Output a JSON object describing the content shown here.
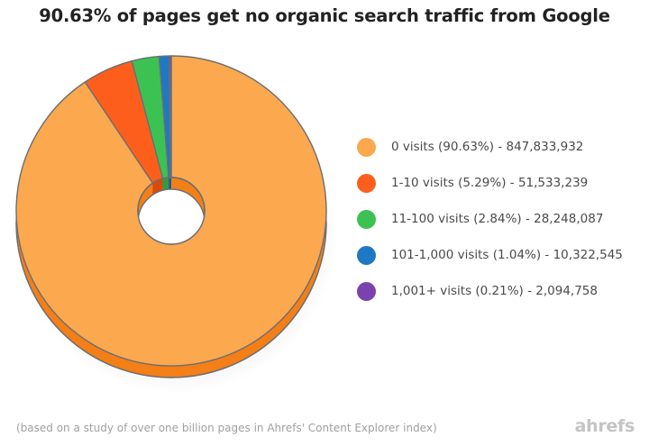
{
  "title": "90.63% of pages get no organic search traffic from Google",
  "footnote": "(based on a study of over one billion pages in Ahrefs' Content Explorer index)",
  "brand": "ahrefs",
  "chart_data": {
    "type": "pie",
    "variant": "donut-3d",
    "title": "90.63% of pages get no organic search traffic from Google",
    "legend_position": "right",
    "categories": [
      "0 visits",
      "1-10 visits",
      "11-100 visits",
      "101-1,000 visits",
      "1,001+ visits"
    ],
    "percentages": [
      90.63,
      5.29,
      2.84,
      1.04,
      0.21
    ],
    "values": [
      847833932,
      51533239,
      28248087,
      10322545,
      2094758
    ],
    "colors": [
      "#FBA84F",
      "#FD5E1C",
      "#3CC253",
      "#1F78C3",
      "#7B42AF"
    ],
    "side_colors": [
      "#F37F16",
      "#DA4A0C",
      "#2E9D42",
      "#17619D",
      "#5F2F8A"
    ],
    "legend": [
      "0 visits (90.63%) - 847,833,932",
      "1-10 visits (5.29%) - 51,533,239",
      "11-100 visits (2.84%) - 28,248,087",
      "101-1,000 visits (1.04%) - 10,322,545",
      "1,001+ visits (0.21%) - 2,094,758"
    ]
  }
}
